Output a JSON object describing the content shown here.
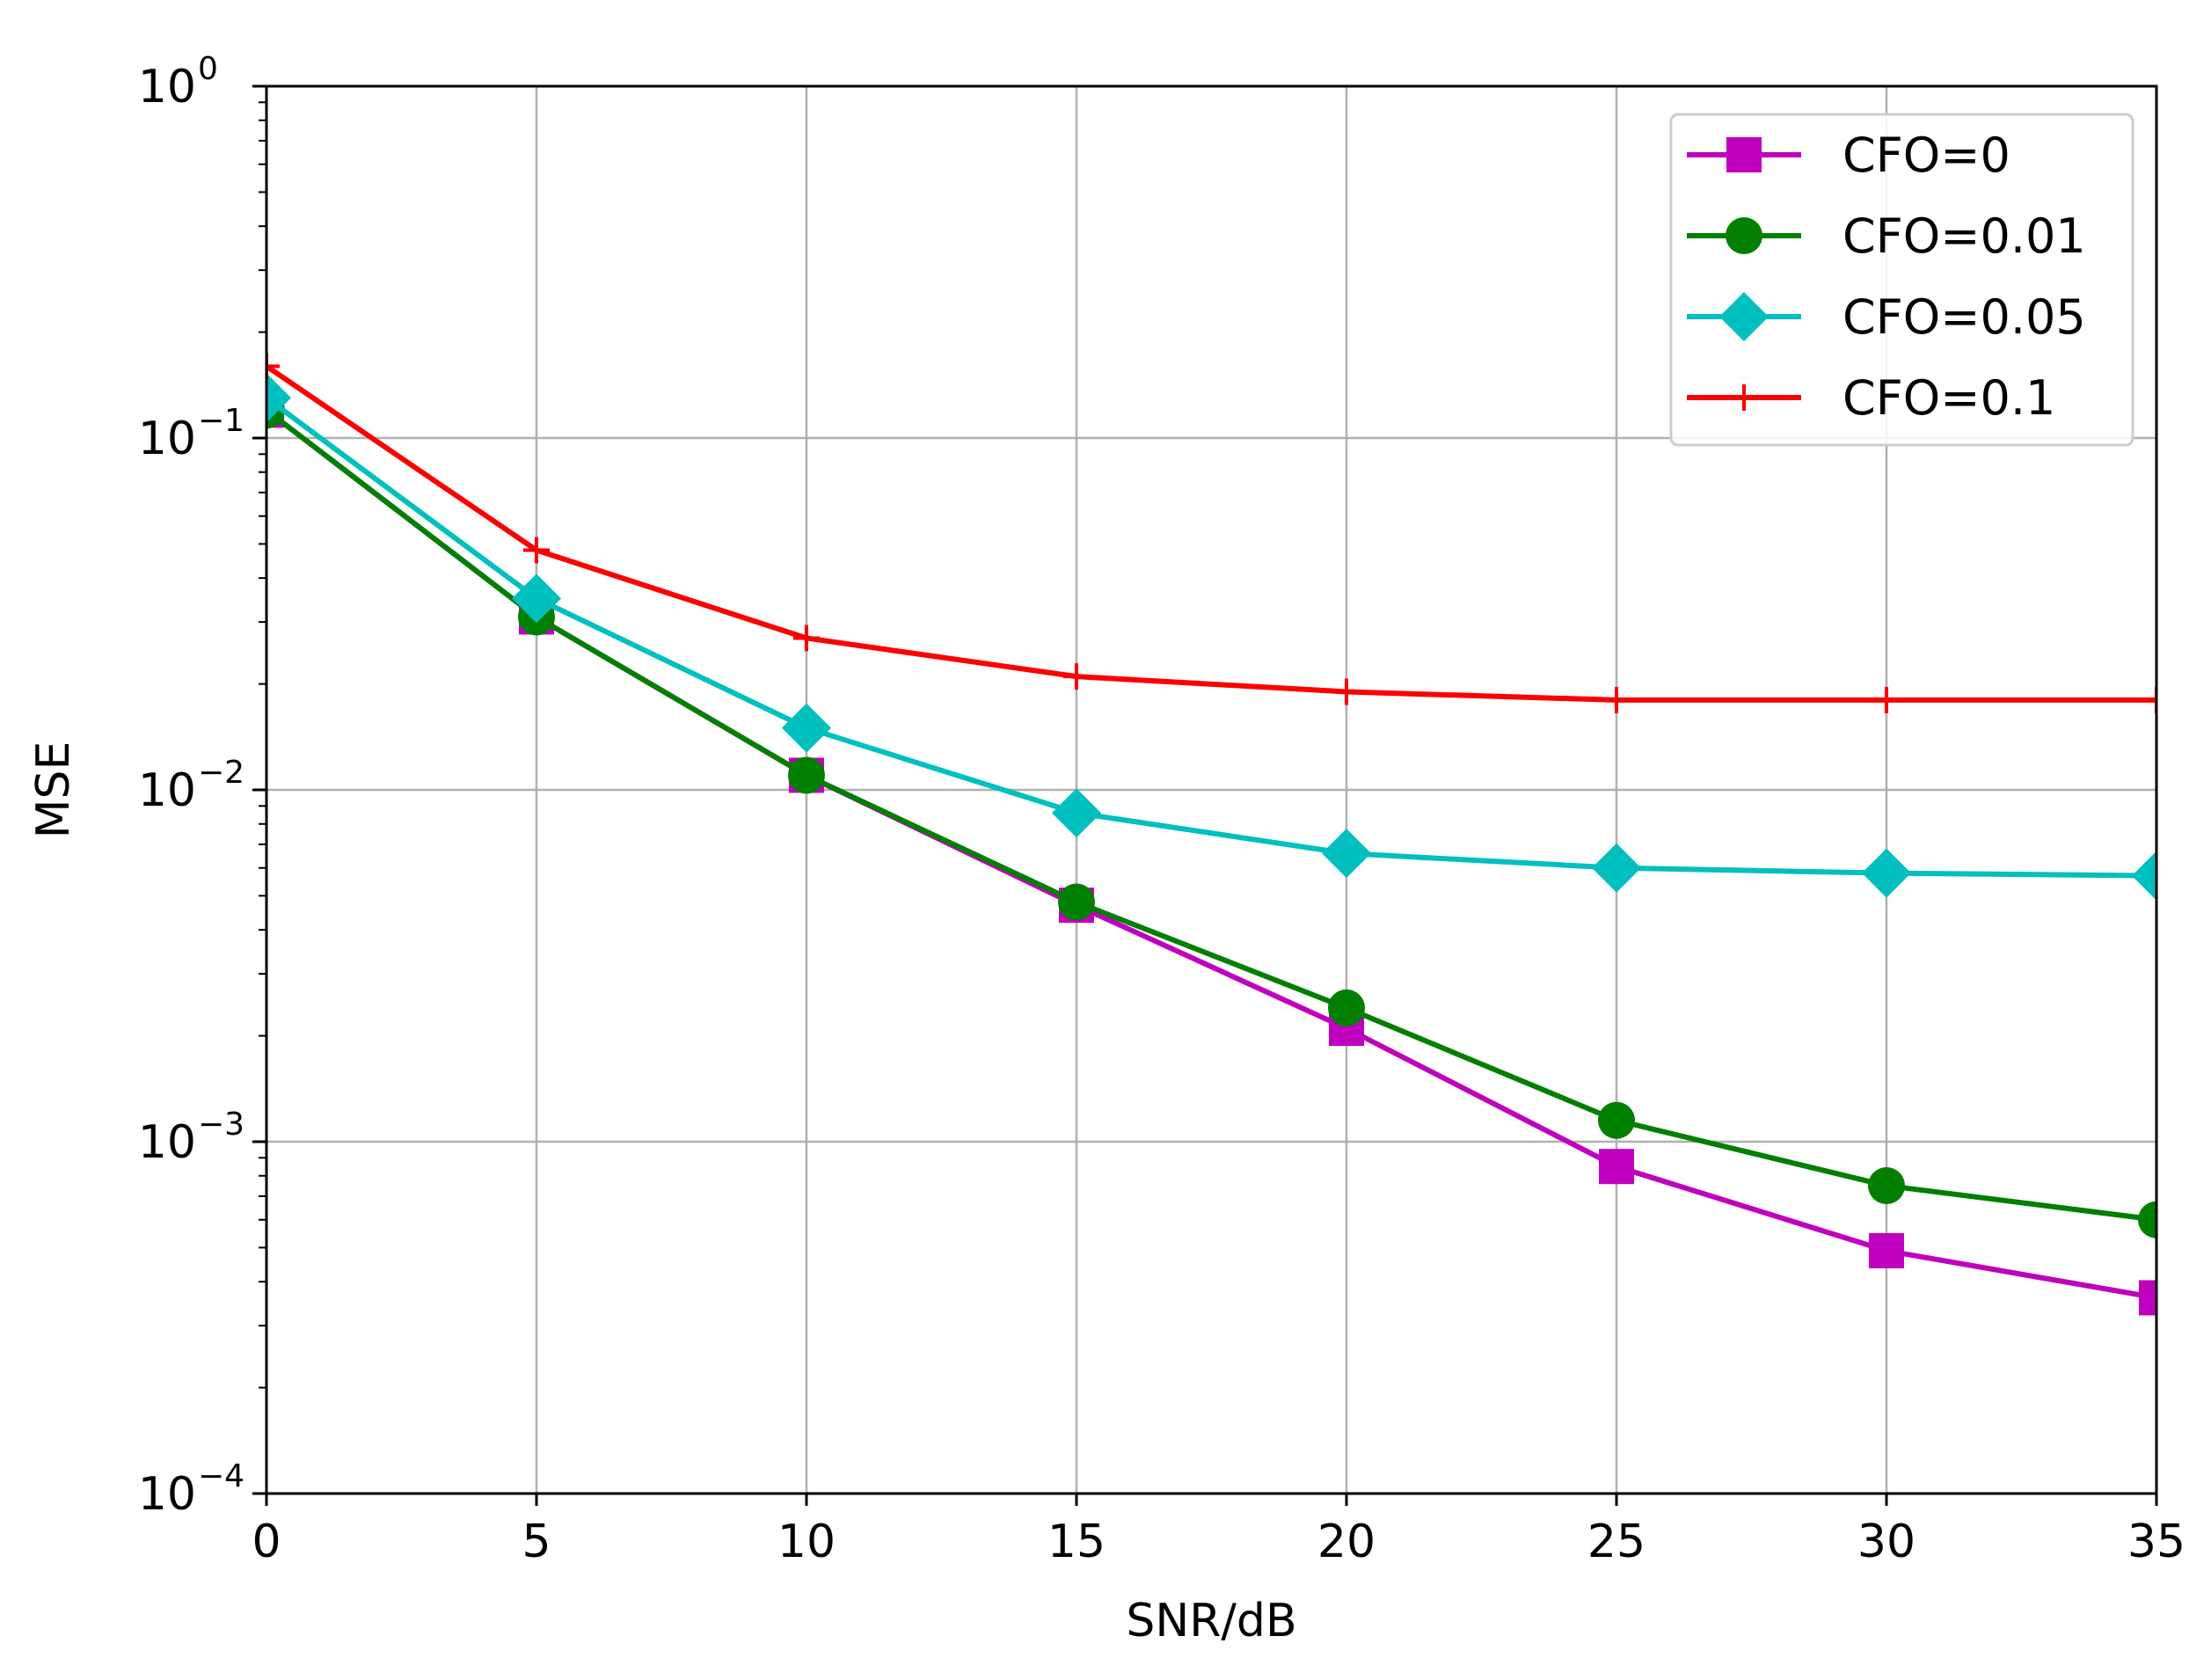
{
  "chart_data": {
    "type": "line",
    "title": "",
    "xlabel": "SNR/dB",
    "ylabel": "MSE",
    "yscale": "log",
    "xlim": [
      0,
      35
    ],
    "ylim": [
      0.0001,
      1
    ],
    "x": [
      0,
      5,
      10,
      15,
      20,
      25,
      30,
      35
    ],
    "x_ticks": [
      "0",
      "5",
      "10",
      "15",
      "20",
      "25",
      "30",
      "35"
    ],
    "y_ticks": [
      {
        "base": "10",
        "exp": "0",
        "value": 1
      },
      {
        "base": "10",
        "exp": "−1",
        "value": 0.1
      },
      {
        "base": "10",
        "exp": "−2",
        "value": 0.01
      },
      {
        "base": "10",
        "exp": "−3",
        "value": 0.001
      },
      {
        "base": "10",
        "exp": "−4",
        "value": 0.0001
      }
    ],
    "grid": true,
    "legend_position": "top-right",
    "series": [
      {
        "name": "CFO=0",
        "color": "#bf00bf",
        "marker": "square",
        "values": [
          0.12,
          0.031,
          0.011,
          0.0047,
          0.0021,
          0.00085,
          0.00049,
          0.00036
        ]
      },
      {
        "name": "CFO=0.01",
        "color": "#007f00",
        "marker": "circle",
        "values": [
          0.12,
          0.031,
          0.011,
          0.0048,
          0.0024,
          0.00115,
          0.00075,
          0.0006
        ]
      },
      {
        "name": "CFO=0.05",
        "color": "#00bfbf",
        "marker": "diamond",
        "values": [
          0.13,
          0.035,
          0.015,
          0.0086,
          0.0066,
          0.006,
          0.0058,
          0.0057
        ]
      },
      {
        "name": "CFO=0.1",
        "color": "#ff0000",
        "marker": "plus",
        "values": [
          0.16,
          0.048,
          0.027,
          0.021,
          0.019,
          0.018,
          0.018,
          0.018
        ]
      }
    ]
  }
}
